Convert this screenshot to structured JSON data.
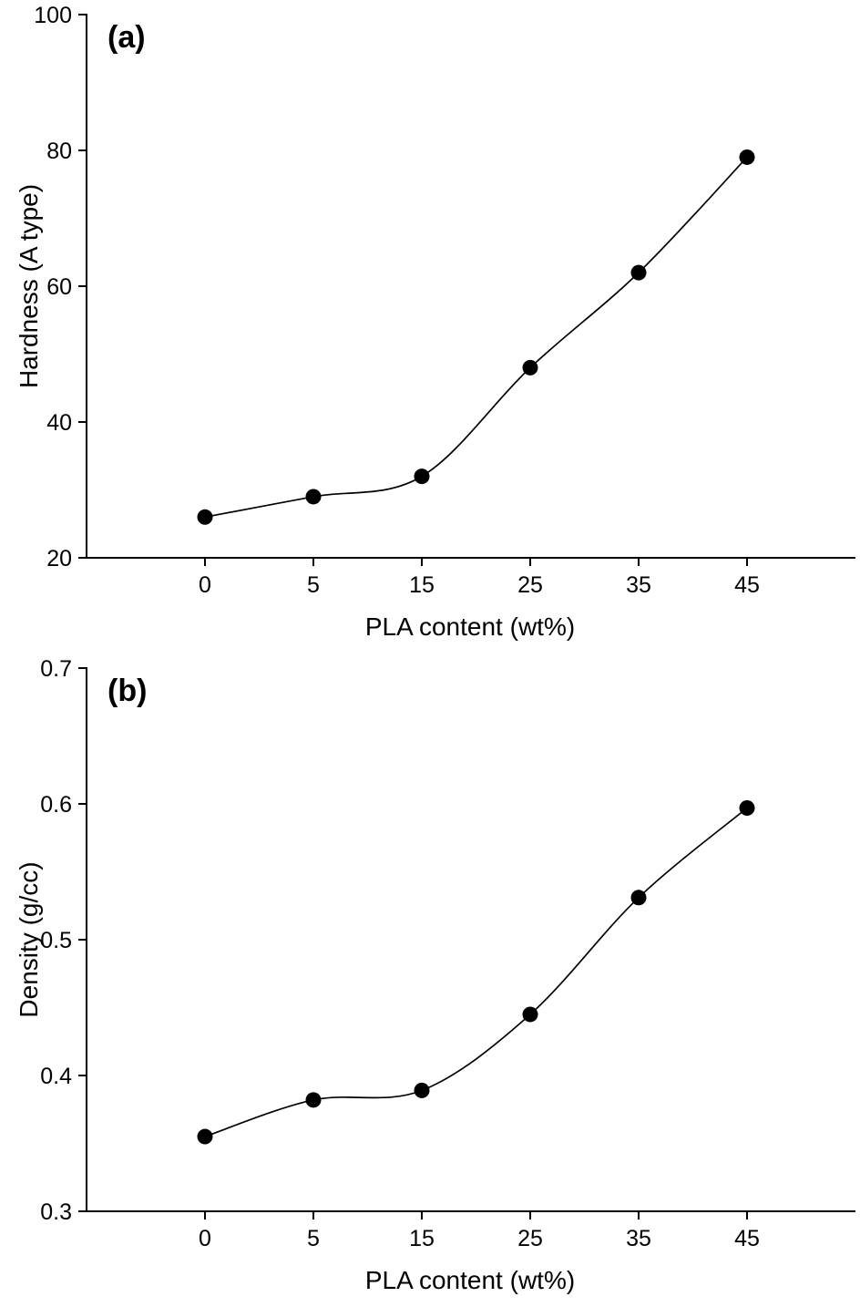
{
  "chart_data": [
    {
      "type": "line",
      "panel_label": "(a)",
      "xlabel": "PLA content (wt%)",
      "ylabel": "Hardness (A type)",
      "categories": [
        "0",
        "5",
        "15",
        "25",
        "35",
        "45"
      ],
      "values": [
        26,
        29,
        32,
        48,
        62,
        79
      ],
      "ylim": [
        20,
        100
      ],
      "yticks": [
        20,
        40,
        60,
        80,
        100
      ],
      "ytick_labels": [
        "20",
        "40",
        "60",
        "80",
        "100"
      ],
      "marker": "filled-circle",
      "line_color": "#000000",
      "marker_color": "#000000",
      "grid": false,
      "legend": "none"
    },
    {
      "type": "line",
      "panel_label": "(b)",
      "xlabel": "PLA content (wt%)",
      "ylabel": "Density (g/cc)",
      "categories": [
        "0",
        "5",
        "15",
        "25",
        "35",
        "45"
      ],
      "values": [
        0.355,
        0.382,
        0.389,
        0.445,
        0.531,
        0.597
      ],
      "ylim": [
        0.3,
        0.7
      ],
      "yticks": [
        0.3,
        0.4,
        0.5,
        0.6,
        0.7
      ],
      "ytick_labels": [
        "0.3",
        "0.4",
        "0.5",
        "0.6",
        "0.7"
      ],
      "marker": "filled-circle",
      "line_color": "#000000",
      "marker_color": "#000000",
      "grid": false,
      "legend": "none"
    }
  ]
}
